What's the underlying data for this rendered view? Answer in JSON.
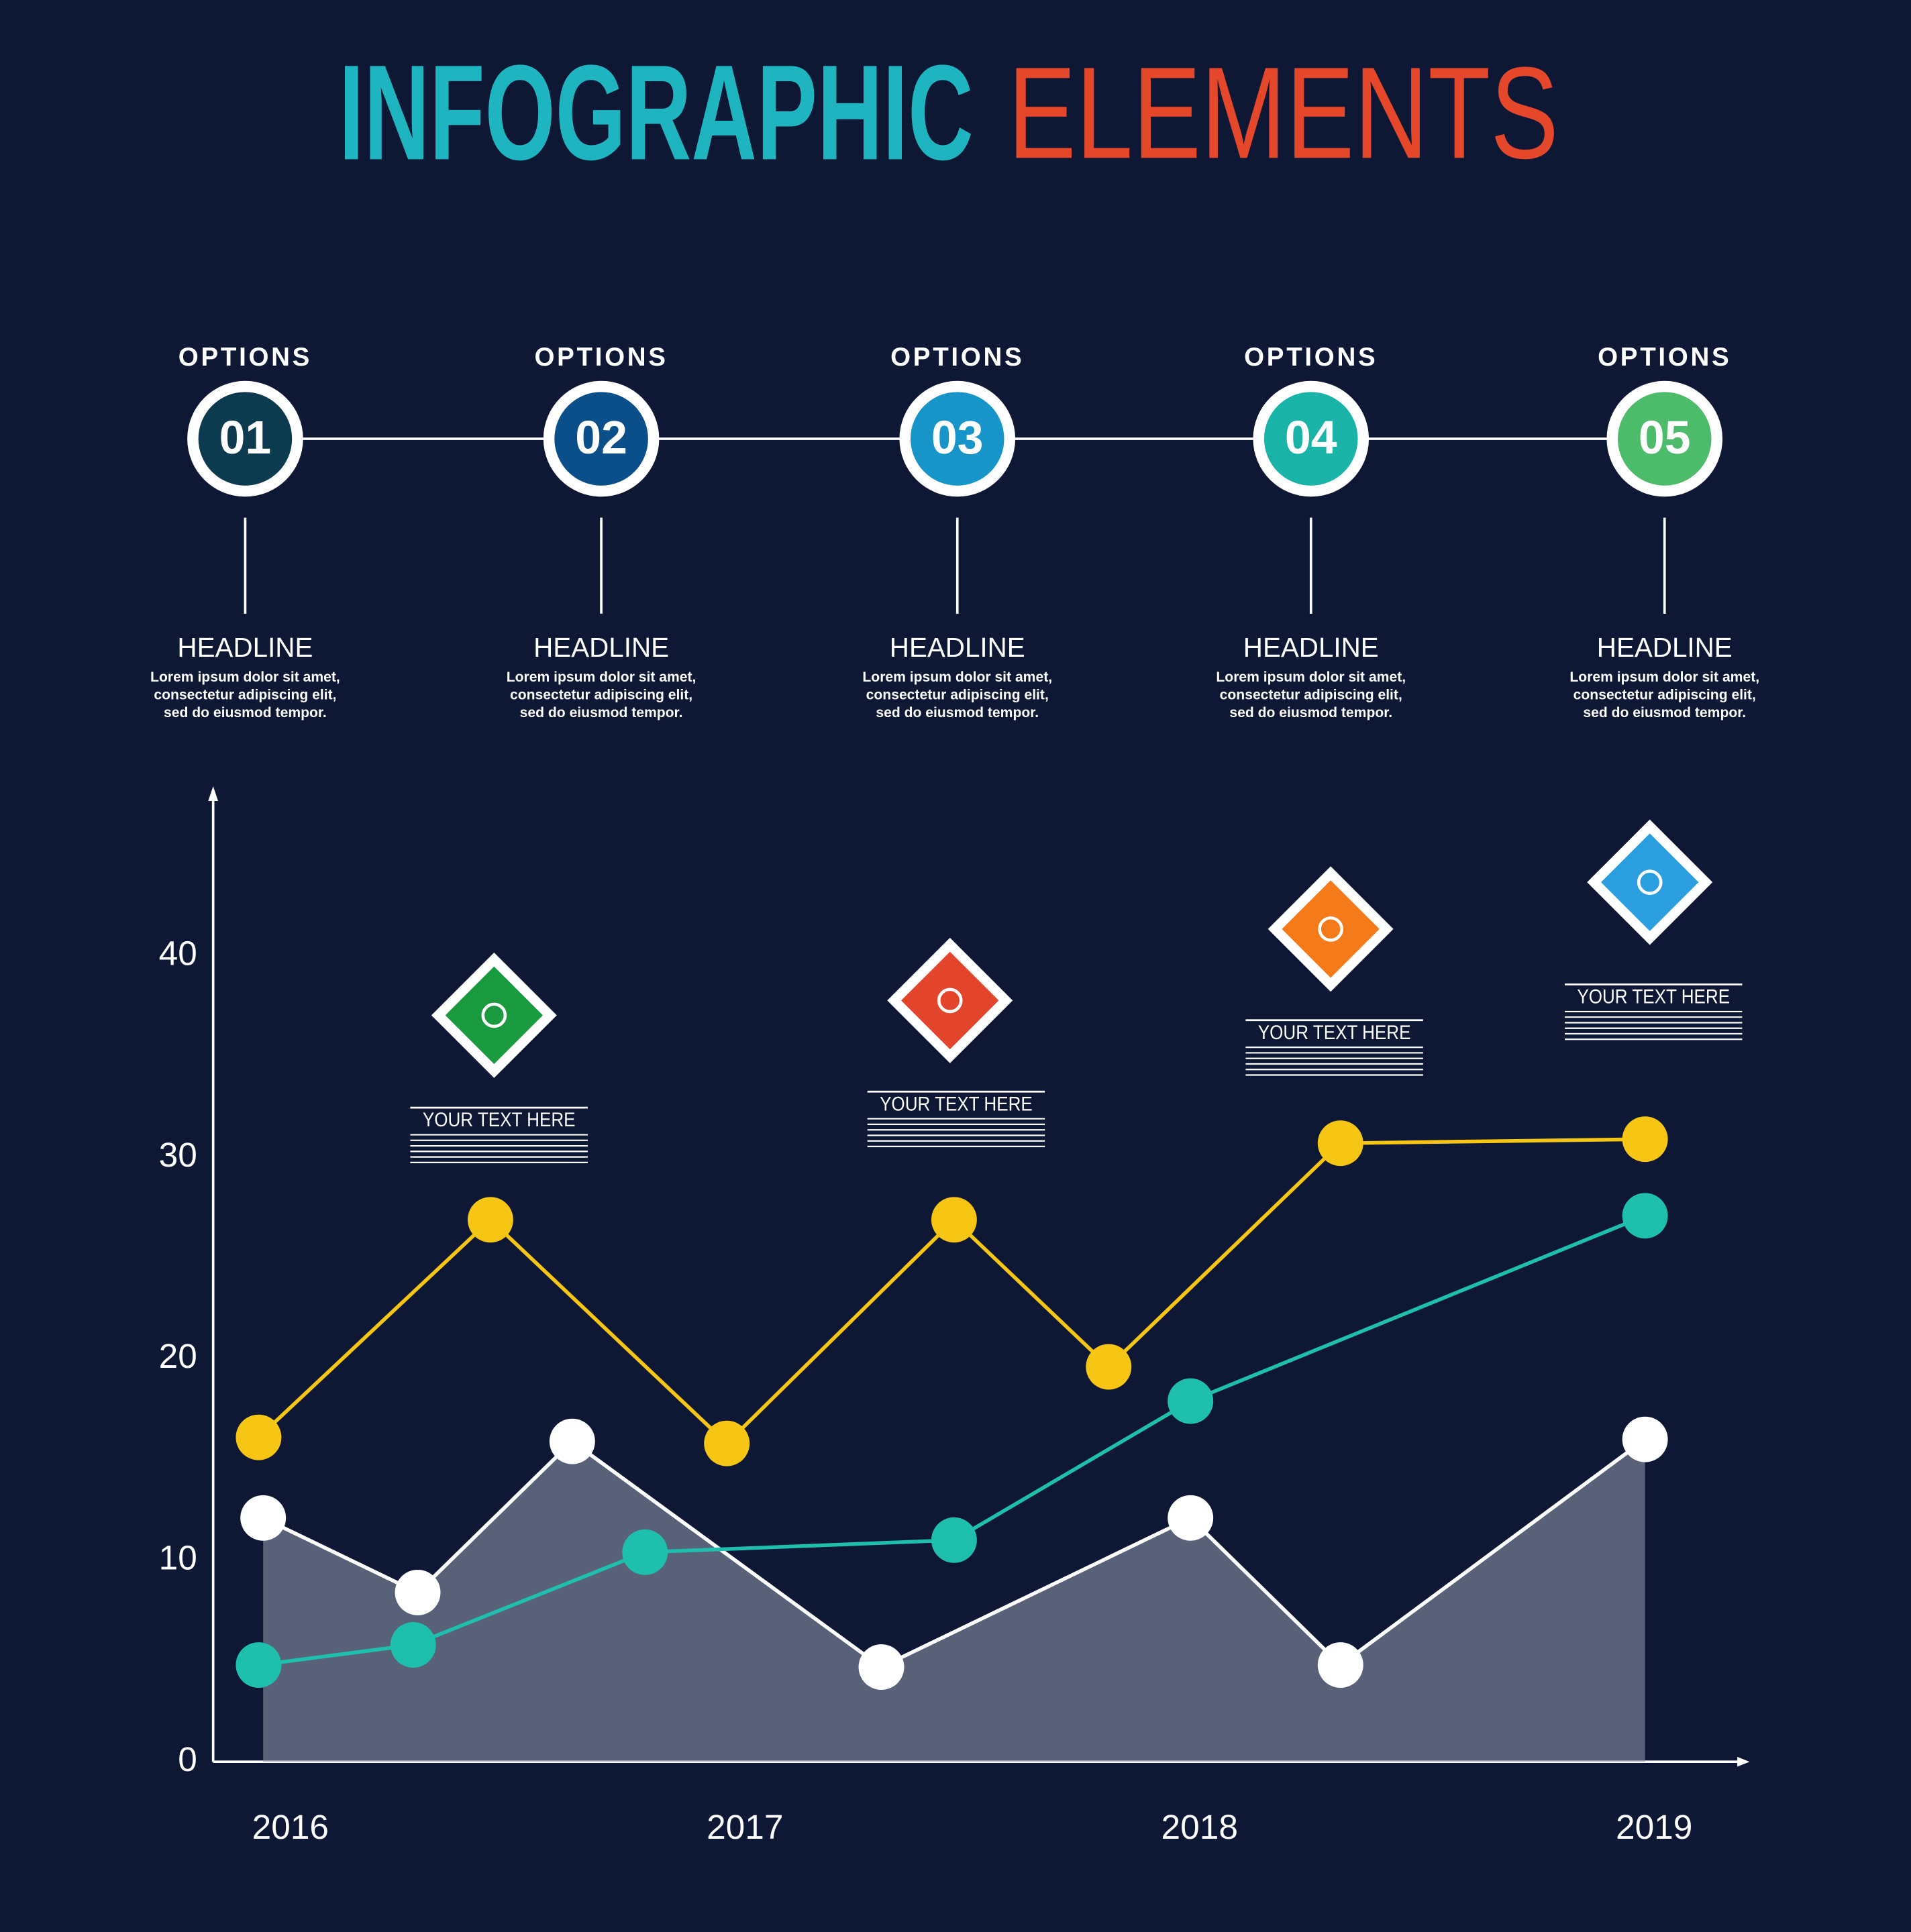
{
  "title": {
    "first": "INFOGRAPHIC",
    "first_color": "#1fb5c0",
    "second": "ELEMENTS",
    "second_color": "#e5472b"
  },
  "options": [
    {
      "label": "OPTIONS",
      "number": "01",
      "color": "#0c3a4e",
      "headline": "HEADLINE",
      "body": [
        "Lorem ipsum dolor sit amet,",
        "consectetur adipiscing elit,",
        "sed do eiusmod tempor."
      ]
    },
    {
      "label": "OPTIONS",
      "number": "02",
      "color": "#0b4f8a",
      "headline": "HEADLINE",
      "body": [
        "Lorem ipsum dolor sit amet,",
        "consectetur adipiscing elit,",
        "sed do eiusmod tempor."
      ]
    },
    {
      "label": "OPTIONS",
      "number": "03",
      "color": "#1795c8",
      "headline": "HEADLINE",
      "body": [
        "Lorem ipsum dolor sit amet,",
        "consectetur adipiscing elit,",
        "sed do eiusmod tempor."
      ]
    },
    {
      "label": "OPTIONS",
      "number": "04",
      "color": "#19b3a8",
      "headline": "HEADLINE",
      "body": [
        "Lorem ipsum dolor sit amet,",
        "consectetur adipiscing elit,",
        "sed do eiusmod tempor."
      ]
    },
    {
      "label": "OPTIONS",
      "number": "05",
      "color": "#4cbb6a",
      "headline": "HEADLINE",
      "body": [
        "Lorem ipsum dolor sit amet,",
        "consectetur adipiscing elit,",
        "sed do eiusmod tempor."
      ]
    }
  ],
  "chart_data": {
    "type": "line",
    "xlim": [
      2015.83,
      2019.21
    ],
    "xticks": [
      2016,
      2017,
      2018,
      2019
    ],
    "ylim": [
      0,
      48.3
    ],
    "yticks": [
      0,
      10,
      20,
      30,
      40
    ],
    "series": [
      {
        "color": "#ffffff",
        "area": true,
        "x": [
          2015.94,
          2016.28,
          2016.62,
          2017.3,
          2017.98,
          2018.31,
          2018.98
        ],
        "values": [
          12.1,
          8.4,
          15.9,
          4.7,
          12.1,
          4.8,
          16.0
        ]
      },
      {
        "color": "#f7c614",
        "x": [
          2015.93,
          2016.44,
          2016.96,
          2017.46,
          2017.8,
          2018.31,
          2018.98
        ],
        "values": [
          16.1,
          26.9,
          15.8,
          26.9,
          19.6,
          30.7,
          30.9
        ]
      },
      {
        "color": "#1fbfae",
        "x": [
          2015.93,
          2016.27,
          2016.78,
          2017.46,
          2017.98,
          2018.98
        ],
        "values": [
          4.8,
          5.8,
          10.4,
          11.0,
          17.9,
          27.1
        ]
      }
    ],
    "annotations": [
      {
        "text": "YOUR TEXT HERE",
        "color": "#1a9a3e"
      },
      {
        "text": "YOUR TEXT HERE",
        "color": "#e2452b"
      },
      {
        "text": "YOUR TEXT HERE",
        "color": "#f47a1a"
      },
      {
        "text": "YOUR TEXT HERE",
        "color": "#2b9ee0"
      }
    ]
  }
}
